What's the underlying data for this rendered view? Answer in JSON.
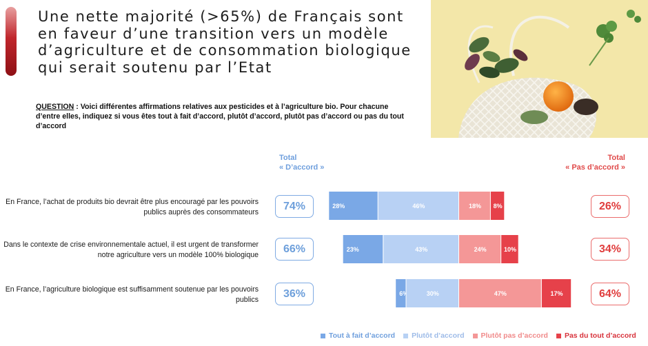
{
  "headline": "Une nette majorité (>65%) de Français sont en faveur d’une transition vers un modèle d’agriculture et de consommation biologique qui serait soutenu par l’Etat",
  "question": {
    "tag": "QUESTION",
    "text": " : Voici différentes affirmations relatives aux pesticides et à l’agriculture bio. Pour chacune d’entre elles, indiquez si vous êtes tout à fait d’accord, plutôt d’accord, plutôt pas d’accord ou pas du tout d’accord"
  },
  "columns": {
    "agree_title": "Total",
    "agree_sub": "« D’accord »",
    "disagree_title": "Total",
    "disagree_sub": "« Pas d’accord »"
  },
  "colors": {
    "accent": "#c0262c",
    "tout_a_fait": "#7aa8e6",
    "plutot": "#b8d1f4",
    "plutot_pas": "#f49797",
    "pas_du_tout": "#e6414a",
    "agree_text": "#6f9fdd",
    "disagree_text": "#e04a4a"
  },
  "chart_data": {
    "type": "bar",
    "orientation": "horizontal-diverging-stacked",
    "categories": [
      "En France, l’achat de produits bio devrait être plus encouragé par les pouvoirs publics auprès des consommateurs",
      "Dans le contexte de crise environnementale actuel, il est urgent de transformer notre agriculture vers un modèle 100% biologique",
      "En France, l’agriculture biologique est suffisamment soutenue par les pouvoirs publics"
    ],
    "series": [
      {
        "name": "Tout à fait d’accord",
        "values": [
          28,
          23,
          6
        ],
        "labels": [
          "28%",
          "23%",
          "6%"
        ]
      },
      {
        "name": "Plutôt d’accord",
        "values": [
          46,
          43,
          30
        ],
        "labels": [
          "46%",
          "43%",
          "30%"
        ]
      },
      {
        "name": "Plutôt pas d’accord",
        "values": [
          18,
          24,
          47
        ],
        "labels": [
          "18%",
          "24%",
          "47%"
        ]
      },
      {
        "name": "Pas du tout d’accord",
        "values": [
          8,
          10,
          17
        ],
        "labels": [
          "8%",
          "10%",
          "17%"
        ]
      }
    ],
    "total_agree": [
      "74%",
      "66%",
      "36%"
    ],
    "total_disagree": [
      "26%",
      "34%",
      "64%"
    ],
    "legend_position": "bottom-right"
  }
}
